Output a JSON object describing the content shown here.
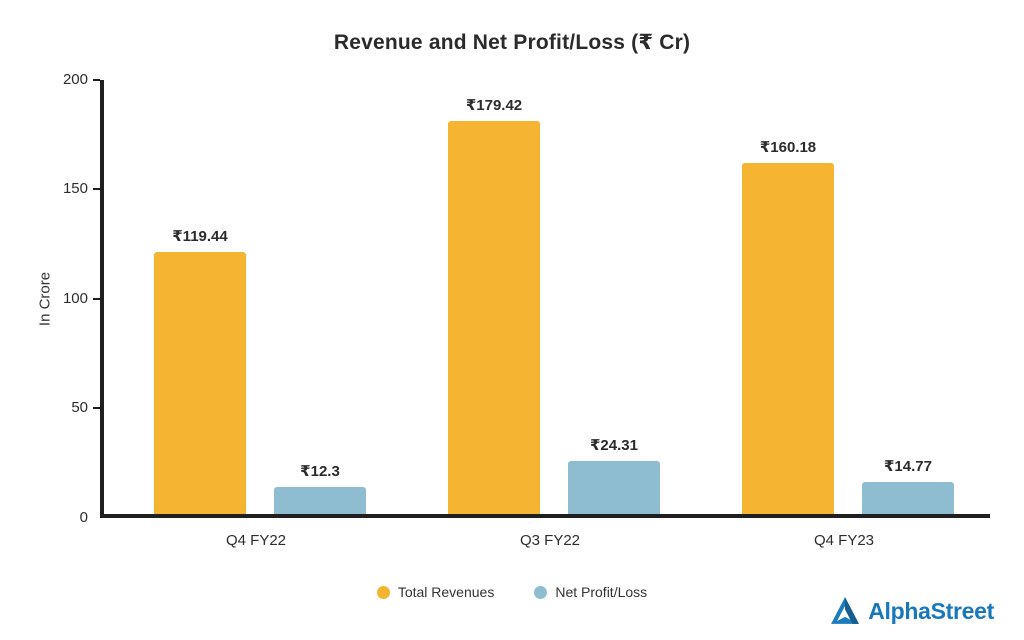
{
  "title": "Revenue and Net Profit/Loss (₹ Cr)",
  "chart_data": {
    "type": "bar",
    "categories": [
      "Q4 FY22",
      "Q3 FY22",
      "Q4 FY23"
    ],
    "series": [
      {
        "name": "Total Revenues",
        "color": "#F5B431",
        "values": [
          119.44,
          179.42,
          160.18
        ],
        "labels": [
          "₹119.44",
          "₹179.42",
          "₹160.18"
        ]
      },
      {
        "name": "Net Profit/Loss",
        "color": "#8EBDD2",
        "values": [
          12.3,
          24.31,
          14.77
        ],
        "labels": [
          "₹12.3",
          "₹24.31",
          "₹14.77"
        ]
      }
    ],
    "ylabel": "In Crore",
    "ylim": [
      0,
      200
    ],
    "yticks": [
      "200",
      "150",
      "100",
      "50",
      "0"
    ],
    "grid": false,
    "legend_position": "bottom"
  },
  "branding": {
    "name": "AlphaStreet",
    "color": "#1878BC"
  }
}
